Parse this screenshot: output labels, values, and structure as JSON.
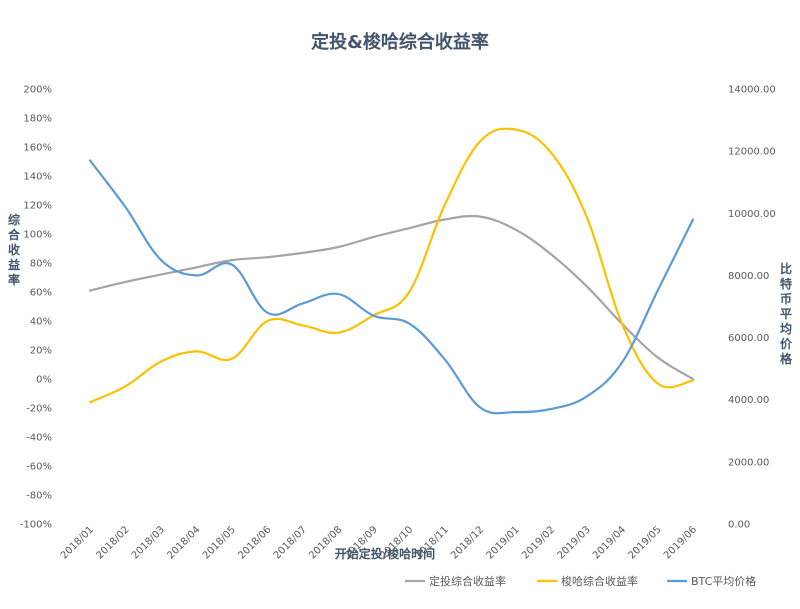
{
  "chart_data": {
    "type": "line",
    "title": "定投&梭哈综合收益率",
    "xlabel": "开始定投/梭哈时间",
    "ylabel": "综合收益率",
    "y2label": "比特币平均价格",
    "categories": [
      "2018/01",
      "2018/02",
      "2018/03",
      "2018/04",
      "2018/05",
      "2018/06",
      "2018/07",
      "2018/08",
      "2018/09",
      "2018/10",
      "2018/11",
      "2018/12",
      "2019/01",
      "2019/02",
      "2019/03",
      "2019/04",
      "2019/05",
      "2019/06"
    ],
    "ylim": [
      -100,
      200
    ],
    "y2lim": [
      0,
      14000
    ],
    "y_ticks": [
      "-100%",
      "-80%",
      "-60%",
      "-40%",
      "-20%",
      "0%",
      "20%",
      "40%",
      "60%",
      "80%",
      "100%",
      "120%",
      "140%",
      "160%",
      "180%",
      "200%"
    ],
    "y2_ticks": [
      "0.00",
      "2000.00",
      "4000.00",
      "6000.00",
      "8000.00",
      "10000.00",
      "12000.00",
      "14000.00"
    ],
    "grid": false,
    "legend_position": "bottom-right",
    "series": [
      {
        "name": "定投综合收益率",
        "axis": "left",
        "color": "#a5a5a5",
        "values": [
          61,
          67,
          72,
          77,
          82,
          84,
          87,
          91,
          98,
          104,
          110,
          112,
          103,
          86,
          64,
          38,
          15,
          0
        ]
      },
      {
        "name": "梭哈综合收益率",
        "axis": "left",
        "color": "#ffc000",
        "values": [
          -16,
          -5,
          12,
          19,
          14,
          40,
          37,
          32,
          44,
          60,
          120,
          164,
          172,
          156,
          112,
          38,
          -3,
          -1
        ]
      },
      {
        "name": "BTC平均价格",
        "axis": "right",
        "color": "#5b9bd5",
        "values": [
          11700,
          10200,
          8500,
          8000,
          8350,
          6800,
          7100,
          7400,
          6700,
          6450,
          5300,
          3750,
          3600,
          3700,
          4100,
          5200,
          7500,
          9800
        ]
      }
    ]
  }
}
